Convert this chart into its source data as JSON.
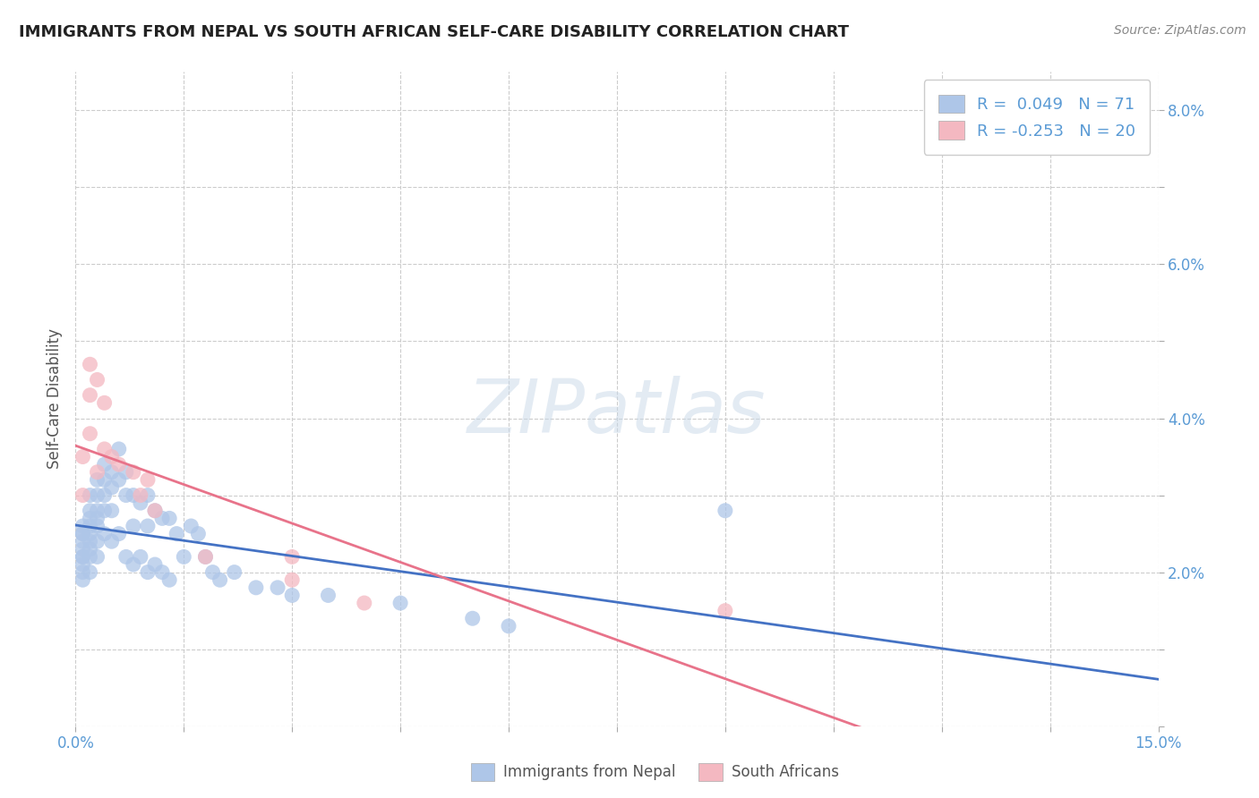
{
  "title": "IMMIGRANTS FROM NEPAL VS SOUTH AFRICAN SELF-CARE DISABILITY CORRELATION CHART",
  "source": "Source: ZipAtlas.com",
  "ylabel": "Self-Care Disability",
  "xlim": [
    0.0,
    0.15
  ],
  "ylim": [
    0.0,
    0.085
  ],
  "xtick_positions": [
    0.0,
    0.015,
    0.03,
    0.045,
    0.06,
    0.075,
    0.09,
    0.105,
    0.12,
    0.135,
    0.15
  ],
  "ytick_positions": [
    0.0,
    0.01,
    0.02,
    0.03,
    0.04,
    0.05,
    0.06,
    0.07,
    0.08
  ],
  "ytick_labels": [
    "",
    "",
    "2.0%",
    "",
    "4.0%",
    "",
    "6.0%",
    "",
    "8.0%"
  ],
  "xtick_labels": [
    "0.0%",
    "",
    "",
    "",
    "",
    "",
    "",
    "",
    "",
    "",
    "15.0%"
  ],
  "nepal_dot_color": "#aec6e8",
  "sa_dot_color": "#f4b8c1",
  "nepal_line_color": "#4472c4",
  "sa_line_color": "#e8738a",
  "tick_color": "#5b9bd5",
  "grid_color": "#cccccc",
  "R_nepal": "0.049",
  "N_nepal": "71",
  "R_sa": "-0.253",
  "N_sa": "20",
  "watermark_text": "ZIPatlas",
  "nepal_x": [
    0.001,
    0.001,
    0.001,
    0.001,
    0.001,
    0.001,
    0.001,
    0.001,
    0.001,
    0.001,
    0.002,
    0.002,
    0.002,
    0.002,
    0.002,
    0.002,
    0.002,
    0.002,
    0.002,
    0.003,
    0.003,
    0.003,
    0.003,
    0.003,
    0.003,
    0.003,
    0.004,
    0.004,
    0.004,
    0.004,
    0.004,
    0.005,
    0.005,
    0.005,
    0.005,
    0.006,
    0.006,
    0.006,
    0.007,
    0.007,
    0.007,
    0.008,
    0.008,
    0.008,
    0.009,
    0.009,
    0.01,
    0.01,
    0.01,
    0.011,
    0.011,
    0.012,
    0.012,
    0.013,
    0.013,
    0.014,
    0.015,
    0.016,
    0.017,
    0.018,
    0.019,
    0.02,
    0.022,
    0.025,
    0.028,
    0.03,
    0.035,
    0.045,
    0.055,
    0.06,
    0.09
  ],
  "nepal_y": [
    0.026,
    0.025,
    0.025,
    0.024,
    0.023,
    0.022,
    0.022,
    0.021,
    0.02,
    0.019,
    0.03,
    0.028,
    0.027,
    0.026,
    0.025,
    0.024,
    0.023,
    0.022,
    0.02,
    0.032,
    0.03,
    0.028,
    0.027,
    0.026,
    0.024,
    0.022,
    0.034,
    0.032,
    0.03,
    0.028,
    0.025,
    0.033,
    0.031,
    0.028,
    0.024,
    0.036,
    0.032,
    0.025,
    0.033,
    0.03,
    0.022,
    0.03,
    0.026,
    0.021,
    0.029,
    0.022,
    0.03,
    0.026,
    0.02,
    0.028,
    0.021,
    0.027,
    0.02,
    0.027,
    0.019,
    0.025,
    0.022,
    0.026,
    0.025,
    0.022,
    0.02,
    0.019,
    0.02,
    0.018,
    0.018,
    0.017,
    0.017,
    0.016,
    0.014,
    0.013,
    0.028
  ],
  "sa_x": [
    0.001,
    0.001,
    0.002,
    0.002,
    0.002,
    0.003,
    0.003,
    0.004,
    0.004,
    0.005,
    0.006,
    0.008,
    0.009,
    0.01,
    0.011,
    0.018,
    0.03,
    0.04,
    0.09,
    0.03
  ],
  "sa_y": [
    0.035,
    0.03,
    0.047,
    0.043,
    0.038,
    0.045,
    0.033,
    0.042,
    0.036,
    0.035,
    0.034,
    0.033,
    0.03,
    0.032,
    0.028,
    0.022,
    0.022,
    0.016,
    0.015,
    0.019
  ]
}
